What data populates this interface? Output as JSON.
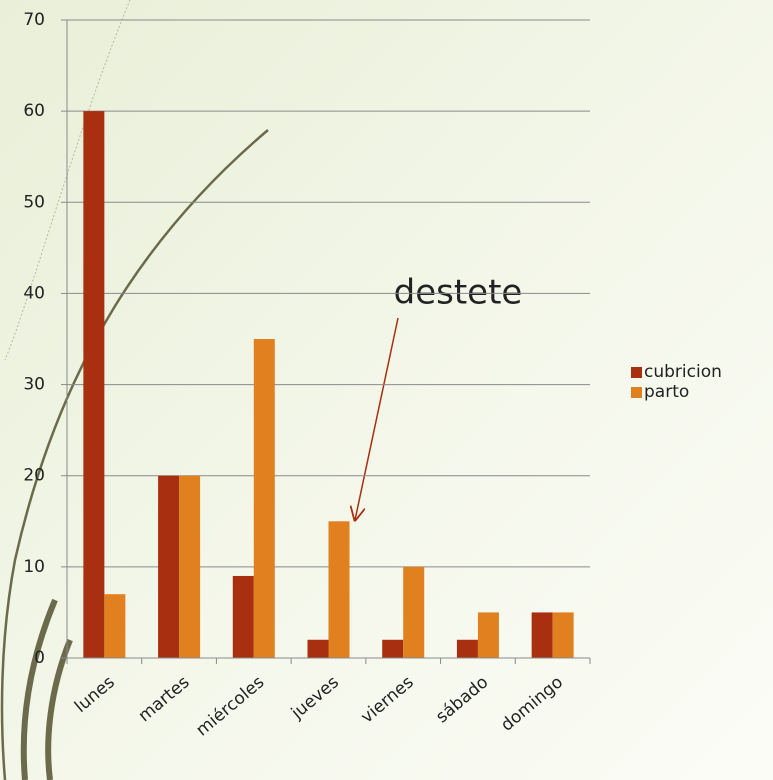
{
  "chart_data": {
    "type": "bar",
    "categories": [
      "lunes",
      "martes",
      "miércoles",
      "jueves",
      "viernes",
      "sábado",
      "domingo"
    ],
    "series": [
      {
        "name": "cubricion",
        "color": "#a83010",
        "values": [
          60,
          20,
          9,
          2,
          2,
          2,
          5
        ]
      },
      {
        "name": "parto",
        "color": "#e0801e",
        "values": [
          7,
          20,
          35,
          15,
          10,
          5,
          5
        ]
      }
    ],
    "ylim": [
      0,
      70
    ],
    "yticks": [
      0,
      10,
      20,
      30,
      40,
      50,
      60,
      70
    ],
    "grid": true,
    "legend": "right",
    "annotation": "destete"
  }
}
